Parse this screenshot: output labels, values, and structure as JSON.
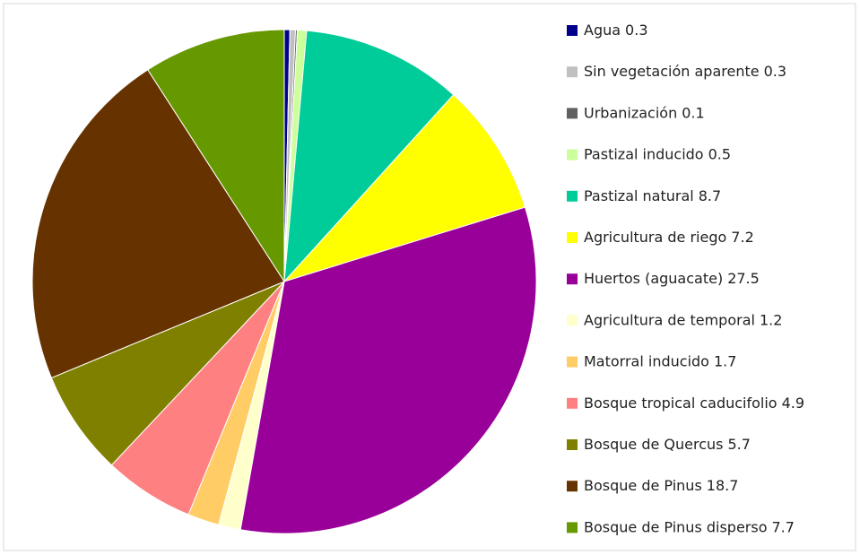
{
  "chart_data": {
    "type": "pie",
    "categories": [
      "Agua",
      "Sin vegetación aparente",
      "Urbanización",
      "Pastizal inducido",
      "Pastizal natural",
      "Agricultura de riego",
      "Huertos (aguacate)",
      "Agricultura de temporal",
      "Matorral inducido",
      "Bosque tropical caducifolio",
      "Bosque de Quercus",
      "Bosque de Pinus",
      "Bosque de Pinus disperso"
    ],
    "values": [
      0.3,
      0.3,
      0.1,
      0.5,
      8.7,
      7.2,
      27.5,
      1.2,
      1.7,
      4.9,
      5.7,
      18.7,
      7.7
    ],
    "colors": [
      "#00008b",
      "#c0c0c0",
      "#606060",
      "#ccff99",
      "#00cc99",
      "#ffff00",
      "#990099",
      "#ffffcc",
      "#ffcc66",
      "#ff8080",
      "#808000",
      "#663300",
      "#669900"
    ],
    "legend": "right"
  }
}
